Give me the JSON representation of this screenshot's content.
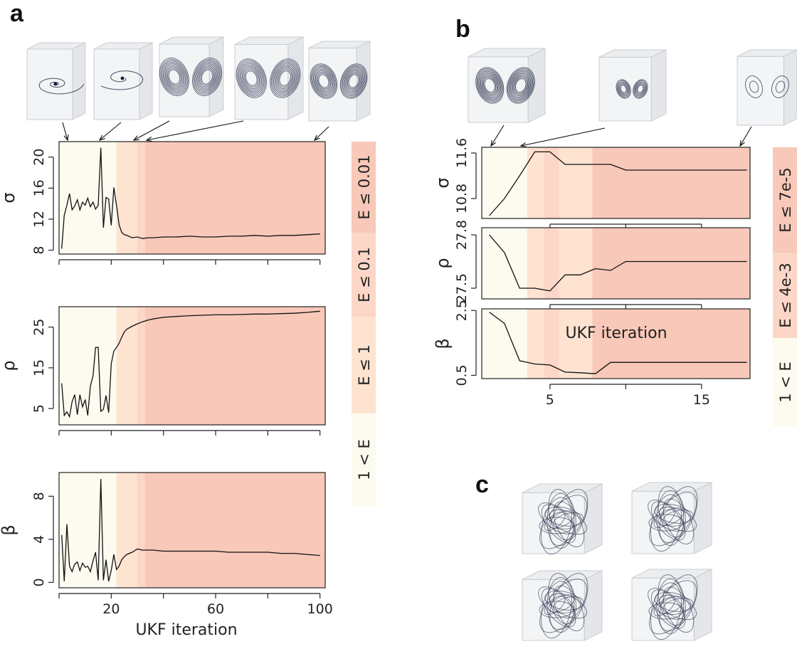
{
  "colors": {
    "band_1": "#fdfbef",
    "band_2": "#fde3d0",
    "band_3": "#fcd6c6",
    "band_4": "#f8c8b8",
    "line": "#111111",
    "attractor": "#1c2440",
    "cube": "#c9cdd2"
  },
  "panel_a": {
    "letter": "a",
    "xlabel": "UKF iteration",
    "x_ticks": [
      "20",
      "60",
      "100"
    ],
    "legend": [
      "E ≤ 0.01",
      "E ≤ 0.1",
      "E ≤ 1",
      "1 < E"
    ]
  },
  "panel_b": {
    "letter": "b",
    "xlabel": "UKF iteration",
    "x_ticks": [
      "5",
      "15"
    ],
    "legend": [
      "E ≤ 7e-5",
      "E ≤ 4e-3",
      "1 < E"
    ]
  },
  "panel_c": {
    "letter": "c"
  },
  "chart_data": [
    {
      "type": "line",
      "panel": "a",
      "ylabel": "σ",
      "xlim": [
        0,
        102
      ],
      "ylim": [
        7.5,
        22
      ],
      "y_ticks": [
        "8",
        "12",
        "16",
        "20"
      ],
      "x": [
        1,
        2,
        3,
        4,
        5,
        6,
        7,
        8,
        9,
        10,
        11,
        12,
        13,
        14,
        15,
        16,
        17,
        18,
        19,
        20,
        21,
        22,
        23,
        24,
        25,
        26,
        28,
        30,
        32,
        34,
        36,
        40,
        45,
        50,
        55,
        60,
        65,
        70,
        75,
        80,
        85,
        90,
        95,
        100
      ],
      "values": [
        8.2,
        12.5,
        13.8,
        15.3,
        13.2,
        13.7,
        14.5,
        13.2,
        14.2,
        13.8,
        14.7,
        13.6,
        14.2,
        13.3,
        13.8,
        21.2,
        10.9,
        14.8,
        14.6,
        11.2,
        16.1,
        13.8,
        11.3,
        10.3,
        10.0,
        9.9,
        9.6,
        9.7,
        9.5,
        9.6,
        9.6,
        9.7,
        9.7,
        9.8,
        9.7,
        9.7,
        9.8,
        9.8,
        9.9,
        9.8,
        9.9,
        9.9,
        10.0,
        10.1
      ],
      "bands": [
        [
          0,
          22,
          "band_1"
        ],
        [
          22,
          30,
          "band_2"
        ],
        [
          30,
          33,
          "band_3"
        ],
        [
          33,
          102,
          "band_4"
        ]
      ]
    },
    {
      "type": "line",
      "panel": "a",
      "ylabel": "ρ",
      "xlim": [
        0,
        102
      ],
      "ylim": [
        1,
        30
      ],
      "y_ticks": [
        "5",
        "15",
        "25"
      ],
      "x": [
        1,
        2,
        3,
        4,
        5,
        6,
        7,
        8,
        9,
        10,
        11,
        12,
        13,
        14,
        15,
        16,
        17,
        18,
        19,
        20,
        21,
        22,
        23,
        24,
        25,
        26,
        28,
        30,
        32,
        34,
        36,
        40,
        45,
        50,
        55,
        60,
        65,
        70,
        75,
        80,
        85,
        90,
        95,
        100
      ],
      "values": [
        11.2,
        3.3,
        4.2,
        3.0,
        6.7,
        8.4,
        3.5,
        8.4,
        5.4,
        7.2,
        3.3,
        10.5,
        13.0,
        20.0,
        20.0,
        4.3,
        4.8,
        8.2,
        4.0,
        16.0,
        19.1,
        20.0,
        21.0,
        22.5,
        23.8,
        24.5,
        25.2,
        25.8,
        26.3,
        26.7,
        27.0,
        27.4,
        27.6,
        27.8,
        27.9,
        28.0,
        28.0,
        28.1,
        28.2,
        28.2,
        28.3,
        28.4,
        28.6,
        28.9
      ],
      "bands": [
        [
          0,
          22,
          "band_1"
        ],
        [
          22,
          30,
          "band_2"
        ],
        [
          30,
          33,
          "band_3"
        ],
        [
          33,
          102,
          "band_4"
        ]
      ]
    },
    {
      "type": "line",
      "panel": "a",
      "ylabel": "β",
      "xlim": [
        0,
        102
      ],
      "ylim": [
        -0.5,
        10.2
      ],
      "y_ticks": [
        "0",
        "4",
        "8"
      ],
      "x": [
        1,
        2,
        3,
        4,
        5,
        6,
        7,
        8,
        9,
        10,
        11,
        12,
        13,
        14,
        15,
        16,
        17,
        18,
        19,
        20,
        21,
        22,
        23,
        24,
        25,
        26,
        28,
        30,
        32,
        34,
        36,
        40,
        45,
        50,
        55,
        60,
        65,
        70,
        75,
        80,
        85,
        90,
        95,
        100
      ],
      "values": [
        4.4,
        0.1,
        5.4,
        1.5,
        1.0,
        1.7,
        1.9,
        1.1,
        1.8,
        1.4,
        1.5,
        1.0,
        2.0,
        2.8,
        0.2,
        9.6,
        0.2,
        2.1,
        0.1,
        1.1,
        2.6,
        1.2,
        1.5,
        2.1,
        2.4,
        2.6,
        2.8,
        3.1,
        3.0,
        3.0,
        3.0,
        2.9,
        2.9,
        2.9,
        2.9,
        2.9,
        2.8,
        2.8,
        2.8,
        2.8,
        2.7,
        2.7,
        2.6,
        2.5
      ],
      "bands": [
        [
          0,
          22,
          "band_1"
        ],
        [
          22,
          30,
          "band_2"
        ],
        [
          30,
          33,
          "band_3"
        ],
        [
          33,
          102,
          "band_4"
        ]
      ]
    },
    {
      "type": "line",
      "panel": "b",
      "ylabel": "σ",
      "xlim": [
        0.5,
        18.2
      ],
      "ylim": [
        10.45,
        11.7
      ],
      "y_ticks": [
        "10.8",
        "11.6"
      ],
      "x": [
        1,
        2,
        3,
        4,
        5,
        6,
        7,
        8,
        9,
        10,
        11,
        12,
        13,
        14,
        15,
        16,
        17,
        18
      ],
      "values": [
        10.5,
        10.8,
        11.2,
        11.62,
        11.62,
        11.4,
        11.4,
        11.4,
        11.4,
        11.3,
        11.3,
        11.3,
        11.3,
        11.3,
        11.3,
        11.3,
        11.3,
        11.3
      ],
      "bands": [
        [
          0.5,
          3.5,
          "band_1"
        ],
        [
          3.5,
          4.6,
          "band_2"
        ],
        [
          4.6,
          5.6,
          "band_3"
        ],
        [
          5.6,
          7.8,
          "band_2"
        ],
        [
          7.8,
          18.2,
          "band_4"
        ]
      ]
    },
    {
      "type": "line",
      "panel": "b",
      "ylabel": "ρ",
      "xlim": [
        0.5,
        18.2
      ],
      "ylim": [
        27.44,
        27.84
      ],
      "y_ticks": [
        "27.5",
        "27.8"
      ],
      "x": [
        1,
        2,
        3,
        4,
        5,
        6,
        7,
        8,
        9,
        10,
        11,
        12,
        13,
        14,
        15,
        16,
        17,
        18
      ],
      "values": [
        27.8,
        27.7,
        27.5,
        27.5,
        27.485,
        27.575,
        27.575,
        27.61,
        27.6,
        27.65,
        27.65,
        27.65,
        27.65,
        27.65,
        27.65,
        27.65,
        27.65,
        27.65
      ],
      "bands": [
        [
          0.5,
          3.5,
          "band_1"
        ],
        [
          3.5,
          4.6,
          "band_2"
        ],
        [
          4.6,
          5.6,
          "band_3"
        ],
        [
          5.6,
          7.8,
          "band_2"
        ],
        [
          7.8,
          18.2,
          "band_4"
        ]
      ]
    },
    {
      "type": "line",
      "panel": "b",
      "ylabel": "β",
      "xlim": [
        0.5,
        18.2
      ],
      "ylim": [
        0.4,
        2.55
      ],
      "y_ticks": [
        "0.5",
        "2.5"
      ],
      "x": [
        1,
        2,
        3,
        4,
        5,
        6,
        7,
        8,
        9,
        10,
        11,
        12,
        13,
        14,
        15,
        16,
        17,
        18
      ],
      "values": [
        2.45,
        2.1,
        0.95,
        0.85,
        0.82,
        0.6,
        0.58,
        0.55,
        0.9,
        0.9,
        0.9,
        0.9,
        0.9,
        0.9,
        0.9,
        0.9,
        0.9,
        0.9
      ],
      "bands": [
        [
          0.5,
          3.5,
          "band_1"
        ],
        [
          3.5,
          4.6,
          "band_2"
        ],
        [
          4.6,
          5.6,
          "band_3"
        ],
        [
          5.6,
          7.8,
          "band_2"
        ],
        [
          7.8,
          18.2,
          "band_4"
        ]
      ]
    }
  ]
}
